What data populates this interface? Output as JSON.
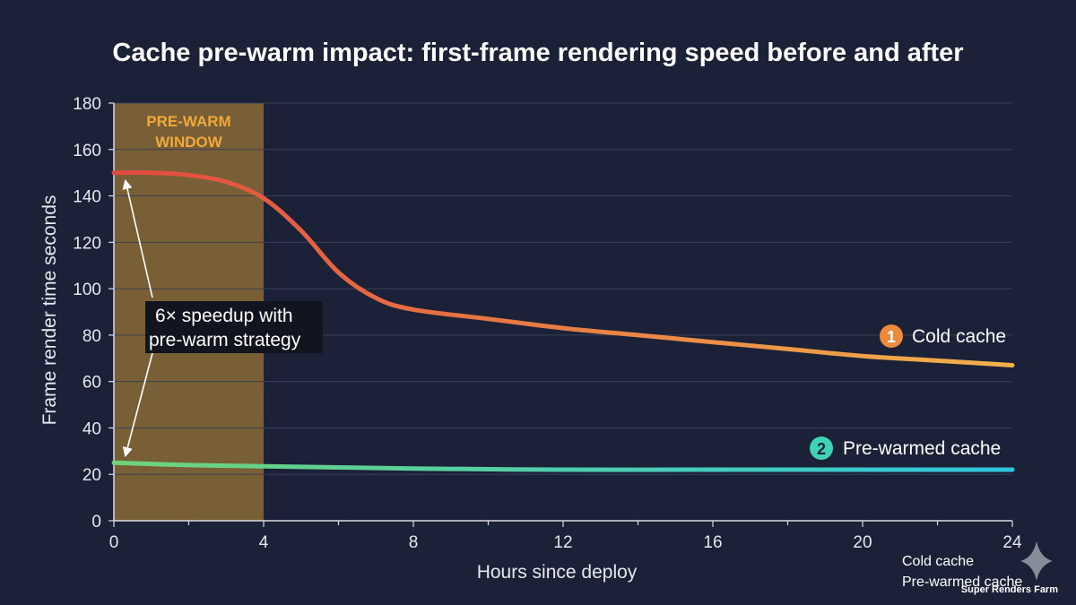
{
  "chart_data": {
    "type": "line",
    "title": "Cache pre-warm impact: first-frame rendering speed before and after",
    "xlabel": "Hours since deploy",
    "ylabel": "Frame render time seconds",
    "xlim": [
      0,
      24
    ],
    "ylim": [
      0,
      180
    ],
    "xticks": [
      0,
      4,
      8,
      12,
      16,
      20,
      24
    ],
    "yticks": [
      0,
      20,
      40,
      60,
      80,
      100,
      120,
      140,
      160,
      180
    ],
    "grid": true,
    "legend_position": "bottom-right",
    "shaded_region": {
      "x_start": 0,
      "x_end": 4,
      "label_line1": "PRE-WARM",
      "label_line2": "WINDOW"
    },
    "annotation": {
      "line1": "6× speedup with",
      "line2": "pre-warm strategy"
    },
    "series": [
      {
        "name": "Cold cache",
        "marker_number": "1",
        "x": [
          0,
          1,
          2,
          3,
          4,
          5,
          6,
          7,
          8,
          10,
          12,
          14,
          16,
          18,
          20,
          22,
          24
        ],
        "y": [
          150,
          150,
          149,
          146,
          139,
          125,
          107,
          96,
          91,
          87,
          83,
          80,
          77,
          74,
          71,
          69,
          67
        ]
      },
      {
        "name": "Pre-warmed cache",
        "marker_number": "2",
        "x": [
          0,
          2,
          4,
          6,
          8,
          12,
          16,
          20,
          24
        ],
        "y": [
          25,
          24,
          23.5,
          23,
          22.5,
          22,
          22,
          22,
          22
        ]
      }
    ],
    "colors": {
      "background": "#1b2137",
      "shade": "#8a6a35",
      "shade_label": "#f0a93a",
      "grid": "#3a4156",
      "axis": "#d9dce4",
      "cold_start": "#e04a3f",
      "cold_end": "#f2b24a",
      "warm_start": "#6fd47a",
      "warm_end": "#2fc6de",
      "badge_cold": "#ee8a3c",
      "badge_warm": "#3ed3b3",
      "annotation_bg": "#11151f"
    }
  },
  "watermark": "Super Renders Farm"
}
